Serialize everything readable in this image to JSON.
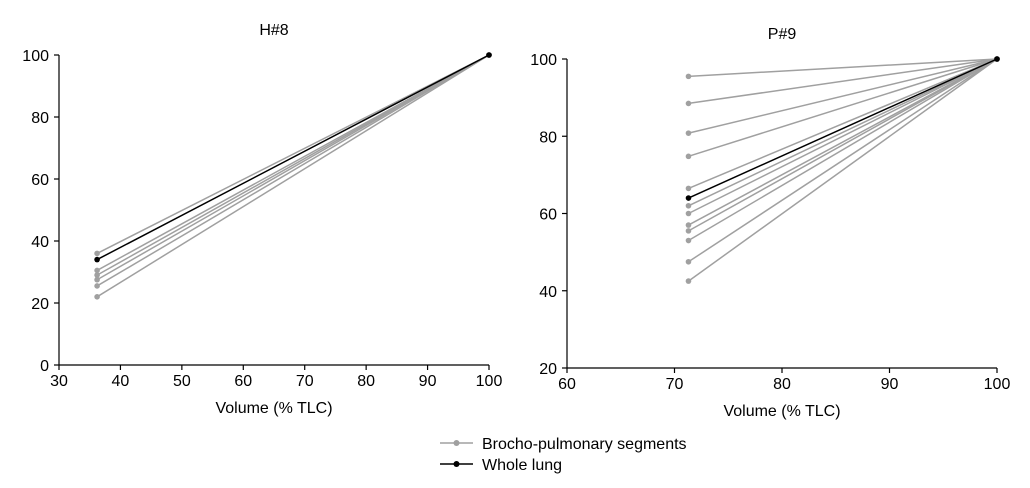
{
  "colors": {
    "segments": "#a0a0a0",
    "whole_lung": "#000000",
    "axis": "#000000"
  },
  "legend": {
    "placement": "bottom-center",
    "entries": [
      {
        "label": "Brocho-pulmonary segments",
        "color": "#a0a0a0",
        "marker": "circle"
      },
      {
        "label": "Whole lung",
        "color": "#000000",
        "marker": "circle"
      }
    ]
  },
  "chart_data": [
    {
      "type": "line",
      "title": "H#8",
      "xlabel": "Volume (% TLC)",
      "ylabel": "",
      "xlim": [
        30,
        100
      ],
      "ylim": [
        0,
        100
      ],
      "xticks": [
        30,
        40,
        50,
        60,
        70,
        80,
        90,
        100
      ],
      "yticks": [
        0,
        20,
        40,
        60,
        80,
        100
      ],
      "grid": false,
      "series": [
        {
          "group": "segments",
          "x": [
            36.2,
            100
          ],
          "y": [
            36,
            100
          ]
        },
        {
          "group": "segments",
          "x": [
            36.2,
            100
          ],
          "y": [
            30.5,
            100
          ]
        },
        {
          "group": "segments",
          "x": [
            36.2,
            100
          ],
          "y": [
            29,
            100
          ]
        },
        {
          "group": "segments",
          "x": [
            36.2,
            100
          ],
          "y": [
            27.5,
            100
          ]
        },
        {
          "group": "segments",
          "x": [
            36.2,
            100
          ],
          "y": [
            25.5,
            100
          ]
        },
        {
          "group": "segments",
          "x": [
            36.2,
            100
          ],
          "y": [
            22,
            100
          ]
        },
        {
          "group": "whole_lung",
          "x": [
            36.2,
            100
          ],
          "y": [
            34,
            100
          ]
        }
      ]
    },
    {
      "type": "line",
      "title": "P#9",
      "xlabel": "Volume (% TLC)",
      "ylabel": "",
      "xlim": [
        60,
        100
      ],
      "ylim": [
        20,
        100
      ],
      "xticks": [
        60,
        70,
        80,
        90,
        100
      ],
      "yticks": [
        20,
        40,
        60,
        80,
        100
      ],
      "grid": false,
      "series": [
        {
          "group": "segments",
          "x": [
            71.3,
            100
          ],
          "y": [
            95.5,
            100
          ]
        },
        {
          "group": "segments",
          "x": [
            71.3,
            100
          ],
          "y": [
            88.5,
            100
          ]
        },
        {
          "group": "segments",
          "x": [
            71.3,
            100
          ],
          "y": [
            80.8,
            100
          ]
        },
        {
          "group": "segments",
          "x": [
            71.3,
            100
          ],
          "y": [
            74.8,
            100
          ]
        },
        {
          "group": "segments",
          "x": [
            71.3,
            100
          ],
          "y": [
            66.5,
            100
          ]
        },
        {
          "group": "segments",
          "x": [
            71.3,
            100
          ],
          "y": [
            62,
            100
          ]
        },
        {
          "group": "segments",
          "x": [
            71.3,
            100
          ],
          "y": [
            60,
            100
          ]
        },
        {
          "group": "segments",
          "x": [
            71.3,
            100
          ],
          "y": [
            57,
            100
          ]
        },
        {
          "group": "segments",
          "x": [
            71.3,
            100
          ],
          "y": [
            55.5,
            100
          ]
        },
        {
          "group": "segments",
          "x": [
            71.3,
            100
          ],
          "y": [
            53,
            100
          ]
        },
        {
          "group": "segments",
          "x": [
            71.3,
            100
          ],
          "y": [
            47.5,
            100
          ]
        },
        {
          "group": "segments",
          "x": [
            71.3,
            100
          ],
          "y": [
            42.5,
            100
          ]
        },
        {
          "group": "whole_lung",
          "x": [
            71.3,
            100
          ],
          "y": [
            64,
            100
          ]
        }
      ]
    }
  ]
}
